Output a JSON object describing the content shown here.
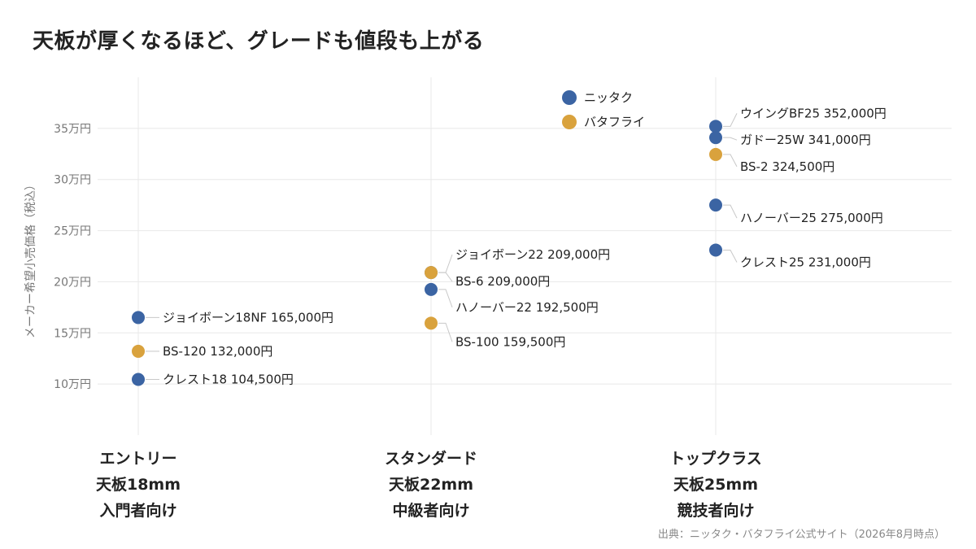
{
  "colors": {
    "nittaku": "#3b64a3",
    "butterfly": "#d9a23d",
    "grid": "#e8e8e8",
    "connector": "#c8c8c8"
  },
  "chart_data": {
    "type": "scatter",
    "title": "天板が厚くなるほど、グレードも値段も上がる",
    "ylabel": "メーカー希望小売価格（税込）",
    "ylim": [
      50000,
      400000
    ],
    "yticks": [
      100000,
      150000,
      200000,
      250000,
      300000,
      350000
    ],
    "ytick_labels": [
      "10万円",
      "15万円",
      "20万円",
      "25万円",
      "30万円",
      "35万円"
    ],
    "categories": [
      {
        "lines": [
          "エントリー",
          "天板18mm",
          "入門者向け"
        ]
      },
      {
        "lines": [
          "スタンダード",
          "天板22mm",
          "中級者向け"
        ]
      },
      {
        "lines": [
          "トップクラス",
          "天板25mm",
          "競技者向け"
        ]
      }
    ],
    "legend": [
      {
        "name": "ニッタク",
        "color_key": "nittaku"
      },
      {
        "name": "バタフライ",
        "color_key": "butterfly"
      }
    ],
    "series": [
      {
        "name": "ニッタク",
        "color_key": "nittaku",
        "points": [
          {
            "category": 0,
            "y": 165000,
            "label": "ジョイボーン18NF  165,000円"
          },
          {
            "category": 0,
            "y": 104500,
            "label": "クレスト18  104,500円"
          },
          {
            "category": 1,
            "y": 209000,
            "label": "ジョイボーン22  209,000円"
          },
          {
            "category": 1,
            "y": 192500,
            "label": "ハノーバー22  192,500円"
          },
          {
            "category": 2,
            "y": 352000,
            "label": "ウイングBF25  352,000円"
          },
          {
            "category": 2,
            "y": 341000,
            "label": "ガドー25W  341,000円"
          },
          {
            "category": 2,
            "y": 275000,
            "label": "ハノーバー25  275,000円"
          },
          {
            "category": 2,
            "y": 231000,
            "label": "クレスト25  231,000円"
          }
        ]
      },
      {
        "name": "バタフライ",
        "color_key": "butterfly",
        "points": [
          {
            "category": 0,
            "y": 132000,
            "label": "BS-120  132,000円"
          },
          {
            "category": 1,
            "y": 209000,
            "label": "BS-6  209,000円"
          },
          {
            "category": 1,
            "y": 159500,
            "label": "BS-100  159,500円"
          },
          {
            "category": 2,
            "y": 324500,
            "label": "BS-2  324,500円"
          }
        ]
      }
    ]
  },
  "source": "出典：ニッタク・バタフライ公式サイト（2026年8月時点）"
}
